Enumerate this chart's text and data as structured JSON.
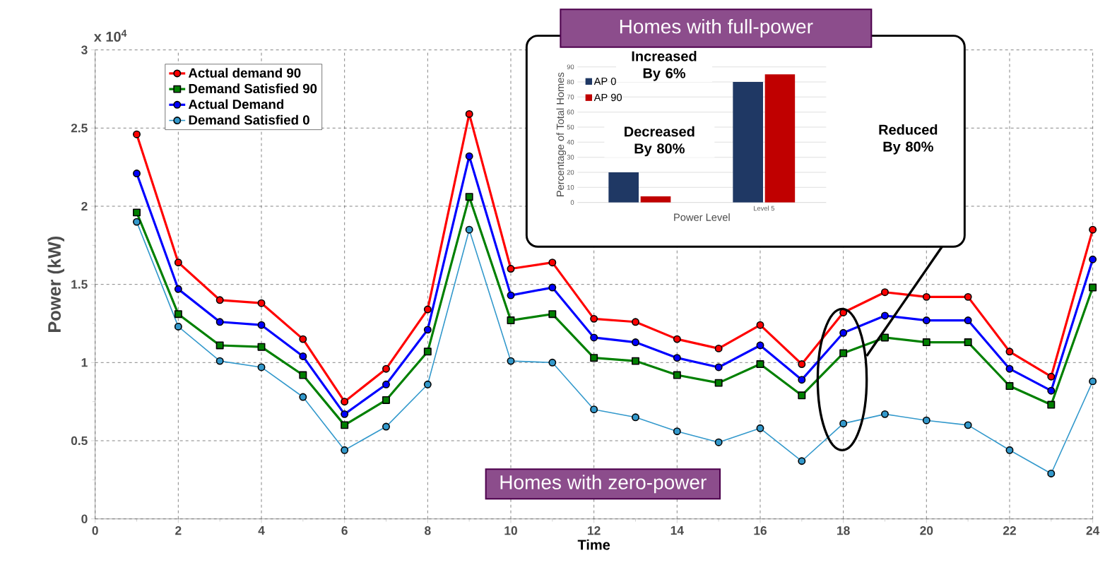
{
  "chart_data": [
    {
      "type": "line",
      "xlabel": "Time",
      "ylabel": "Power (kW)",
      "x": [
        1,
        2,
        3,
        4,
        5,
        6,
        7,
        8,
        9,
        10,
        11,
        12,
        13,
        14,
        15,
        16,
        17,
        18,
        19,
        20,
        21,
        22,
        23,
        24
      ],
      "series": [
        {
          "name": "Actual demand 90",
          "color": "#ff0000",
          "marker": "circle",
          "values": [
            2.46,
            1.64,
            1.4,
            1.38,
            1.15,
            0.75,
            0.96,
            1.34,
            2.59,
            1.6,
            1.64,
            1.28,
            1.26,
            1.15,
            1.09,
            1.24,
            0.99,
            1.32,
            1.45,
            1.42,
            1.42,
            1.07,
            0.91,
            1.85
          ]
        },
        {
          "name": "Demand Satisfied 90",
          "color": "#008000",
          "marker": "square",
          "values": [
            1.96,
            1.31,
            1.11,
            1.1,
            0.92,
            0.6,
            0.76,
            1.07,
            2.06,
            1.27,
            1.31,
            1.03,
            1.01,
            0.92,
            0.87,
            0.99,
            0.79,
            1.06,
            1.16,
            1.13,
            1.13,
            0.85,
            0.73,
            1.48
          ]
        },
        {
          "name": "Actual Demand",
          "color": "#0000ff",
          "marker": "circle",
          "values": [
            2.21,
            1.47,
            1.26,
            1.24,
            1.04,
            0.67,
            0.86,
            1.21,
            2.32,
            1.43,
            1.48,
            1.16,
            1.13,
            1.03,
            0.97,
            1.11,
            0.89,
            1.19,
            1.3,
            1.27,
            1.27,
            0.96,
            0.82,
            1.66
          ]
        },
        {
          "name": "Demand Satisfied 0",
          "color": "#3399cc",
          "marker": "circle",
          "values": [
            1.9,
            1.23,
            1.01,
            0.97,
            0.78,
            0.44,
            0.59,
            0.86,
            1.85,
            1.01,
            1.0,
            0.7,
            0.65,
            0.56,
            0.49,
            0.58,
            0.37,
            0.61,
            0.67,
            0.63,
            0.6,
            0.44,
            0.29,
            0.88
          ]
        }
      ],
      "xlim": [
        0,
        24
      ],
      "xticks": [
        0,
        2,
        4,
        6,
        8,
        10,
        12,
        14,
        16,
        18,
        20,
        22,
        24
      ],
      "ylim": [
        0,
        3
      ],
      "yticks": [
        0,
        0.5,
        1,
        1.5,
        2,
        2.5,
        3
      ],
      "grid": true,
      "legend": "top left",
      "annotations": [
        "x 10$^{4}$",
        "Homes with zero-power"
      ]
    },
    {
      "type": "bar",
      "title": "Homes with full-power",
      "xlabel": "Power Level",
      "ylabel": "Percentage of Total Homes",
      "categories": [
        null,
        "Level 5"
      ],
      "series": [
        {
          "name": "AP 0",
          "color": "#1f3864",
          "values": [
            20,
            80
          ]
        },
        {
          "name": "AP 90",
          "color": "#c00000",
          "values": [
            4,
            85
          ]
        }
      ],
      "ylim": [
        0,
        90
      ],
      "yticks": [
        0,
        10,
        20,
        30,
        40,
        50,
        60,
        70,
        80,
        90
      ],
      "grid": "y",
      "legend": "top left",
      "annotations": [
        "Increased By 6%",
        "Decreased By 80%",
        "Reduced By 80%"
      ]
    }
  ]
}
